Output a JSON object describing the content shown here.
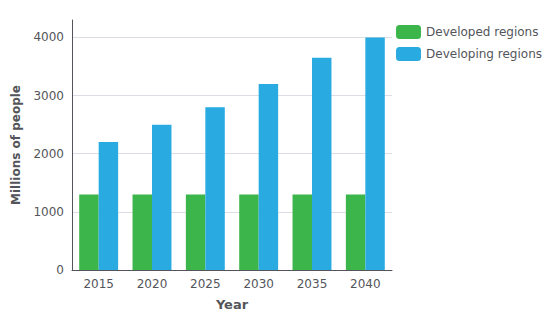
{
  "chart_data": {
    "type": "bar",
    "xlabel": "Year",
    "ylabel": "Millions of people",
    "categories": [
      "2015",
      "2020",
      "2025",
      "2030",
      "2035",
      "2040"
    ],
    "series": [
      {
        "name": "Developed regions",
        "color": "#3cb54a",
        "values": [
          1300,
          1300,
          1300,
          1300,
          1300,
          1300
        ]
      },
      {
        "name": "Developing regions",
        "color": "#29abe2",
        "values": [
          2200,
          2500,
          2800,
          3200,
          3650,
          4000
        ]
      }
    ],
    "ylim": [
      0,
      4300
    ],
    "yticks": [
      0,
      1000,
      2000,
      3000,
      4000
    ],
    "grid": true,
    "legend": "right"
  }
}
